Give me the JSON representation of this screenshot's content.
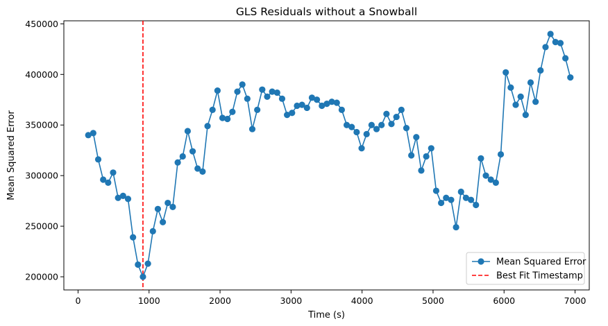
{
  "chart_data": {
    "type": "line",
    "title": "GLS Residuals without a Snowball",
    "xlabel": "Time (s)",
    "ylabel": "Mean Squared Error",
    "xlim": [
      -200,
      7200
    ],
    "ylim": [
      187000,
      453000
    ],
    "xticks": [
      0,
      1000,
      2000,
      3000,
      4000,
      5000,
      6000,
      7000
    ],
    "yticks": [
      200000,
      250000,
      300000,
      350000,
      400000,
      450000
    ],
    "grid": false,
    "legend_position": "lower-right",
    "colors": {
      "series": "#1f77b4",
      "marker": "#1f77b4",
      "vline": "#ff0000"
    },
    "series": [
      {
        "name": "Mean Squared Error",
        "style": "line-with-circle-markers",
        "x": [
          144,
          214,
          284,
          354,
          424,
          494,
          564,
          634,
          704,
          774,
          844,
          914,
          984,
          1054,
          1124,
          1194,
          1264,
          1334,
          1404,
          1474,
          1544,
          1614,
          1684,
          1754,
          1824,
          1894,
          1964,
          2034,
          2104,
          2174,
          2244,
          2314,
          2384,
          2454,
          2524,
          2594,
          2664,
          2734,
          2804,
          2874,
          2944,
          3014,
          3084,
          3154,
          3224,
          3294,
          3364,
          3434,
          3504,
          3574,
          3644,
          3714,
          3784,
          3854,
          3924,
          3994,
          4064,
          4134,
          4204,
          4274,
          4344,
          4414,
          4484,
          4554,
          4624,
          4694,
          4764,
          4834,
          4904,
          4974,
          5044,
          5114,
          5184,
          5254,
          5324,
          5394,
          5464,
          5534,
          5604,
          5674,
          5744,
          5814,
          5884,
          5954,
          6024,
          6094,
          6164,
          6234,
          6304,
          6374,
          6444,
          6514,
          6584,
          6654,
          6724,
          6794,
          6864,
          6934
        ],
        "y": [
          340000,
          342000,
          316000,
          296000,
          293000,
          303000,
          278000,
          280000,
          277000,
          239000,
          212000,
          200000,
          213000,
          245000,
          267000,
          254000,
          273000,
          269000,
          313000,
          319000,
          344000,
          324000,
          307000,
          304000,
          349000,
          365000,
          384000,
          357000,
          356000,
          363000,
          383000,
          390000,
          376000,
          346000,
          365000,
          385000,
          378000,
          383000,
          382000,
          376000,
          360000,
          362000,
          369000,
          370000,
          367000,
          377000,
          375000,
          369000,
          371000,
          373000,
          372000,
          365000,
          350000,
          348000,
          343000,
          327000,
          341000,
          350000,
          346000,
          350000,
          361000,
          351000,
          358000,
          365000,
          347000,
          320000,
          338000,
          305000,
          319000,
          327000,
          285000,
          273000,
          278000,
          276000,
          249000,
          284000,
          278000,
          276000,
          271000,
          317000,
          300000,
          296000,
          293000,
          321000,
          402000,
          387000,
          370000,
          378000,
          360000,
          392000,
          373000,
          404000,
          427000,
          440000,
          432000,
          431000,
          416000,
          397000
        ]
      }
    ],
    "vline": {
      "name": "Best Fit Timestamp",
      "x": 914,
      "style": "dashed"
    }
  }
}
